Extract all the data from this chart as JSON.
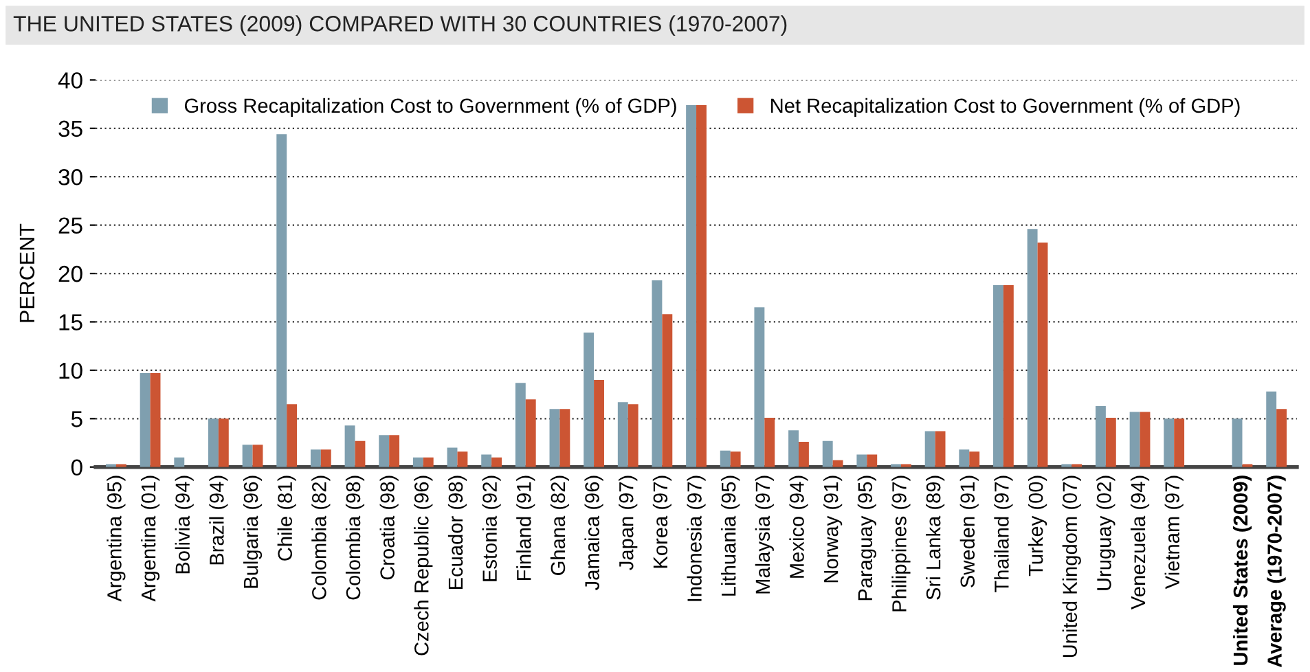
{
  "chart_data": {
    "type": "bar",
    "title": "THE UNITED STATES (2009) COMPARED WITH 30 COUNTRIES (1970-2007)",
    "ylabel": "PERCENT",
    "categories": [
      "Argentina (95)",
      "Argentina (01)",
      "Bolivia (94)",
      "Brazil (94)",
      "Bulgaria (96)",
      "Chile (81)",
      "Colombia (82)",
      "Colombia (98)",
      "Croatia (98)",
      "Czech Republic (96)",
      "Ecuador (98)",
      "Estonia (92)",
      "Finland (91)",
      "Ghana (82)",
      "Jamaica (96)",
      "Japan (97)",
      "Korea (97)",
      "Indonesia (97)",
      "Lithuania (95)",
      "Malaysia (97)",
      "Mexico (94)",
      "Norway (91)",
      "Paraguay (95)",
      "Philippines (97)",
      "Sri Lanka (89)",
      "Sweden (91)",
      "Thailand (97)",
      "Turkey (00)",
      "United Kingdom (07)",
      "Uruguay (02)",
      "Venezuela (94)",
      "Vietnam (97)",
      null,
      "United States (2009)",
      "Average (1970-2007)"
    ],
    "series": [
      {
        "name": "Gross Recapitalization Cost to Government (% of GDP)",
        "color": "#7f9faf",
        "values": [
          0.3,
          9.7,
          1.0,
          5.0,
          2.3,
          34.4,
          1.8,
          4.3,
          3.3,
          1.0,
          2.0,
          1.3,
          8.7,
          6.0,
          13.9,
          6.7,
          19.3,
          37.4,
          1.7,
          16.5,
          3.8,
          2.7,
          1.3,
          0.3,
          3.7,
          1.8,
          18.8,
          24.6,
          0.3,
          6.3,
          5.7,
          5.0,
          null,
          5.0,
          7.8
        ]
      },
      {
        "name": "Net Recapitalization Cost to Government (% of GDP)",
        "color": "#cc5533",
        "values": [
          0.3,
          9.7,
          0,
          5.0,
          2.3,
          6.5,
          1.8,
          2.7,
          3.3,
          1.0,
          1.6,
          1.0,
          7.0,
          6.0,
          9.0,
          6.5,
          15.8,
          37.4,
          1.6,
          5.1,
          2.6,
          0.7,
          1.3,
          0.3,
          3.7,
          1.6,
          18.8,
          23.2,
          0.3,
          5.1,
          5.7,
          5.0,
          null,
          0.3,
          6.0
        ]
      }
    ],
    "ylim": [
      0,
      40
    ],
    "yticks": [
      0,
      5,
      10,
      15,
      20,
      25,
      30,
      35,
      40
    ],
    "grid": "y",
    "legend": "top"
  }
}
